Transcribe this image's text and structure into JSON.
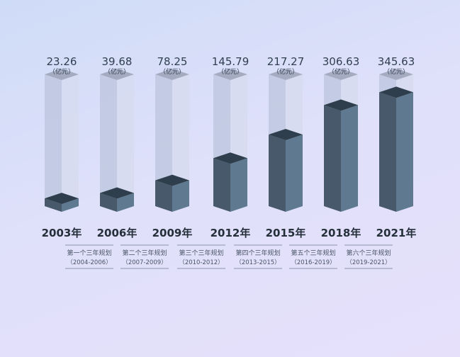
{
  "chart_data": {
    "type": "bar",
    "categories": [
      "2003年",
      "2006年",
      "2009年",
      "2012年",
      "2015年",
      "2018年",
      "2021年"
    ],
    "values": [
      23.26,
      39.68,
      78.25,
      145.79,
      217.27,
      306.63,
      345.63
    ],
    "value_labels": [
      "23.26",
      "39.68",
      "78.25",
      "145.79",
      "217.27",
      "306.63",
      "345.63"
    ],
    "unit_label": "（亿元）",
    "plans": [
      {
        "name": "第一个三年规划",
        "range": "（2004-2006）"
      },
      {
        "name": "第二个三年规划",
        "range": "（2007-2009）"
      },
      {
        "name": "第三个三年规划",
        "range": "（2010-2012）"
      },
      {
        "name": "第四个三年规划",
        "range": "（2013-2015）"
      },
      {
        "name": "第五个三年规划",
        "range": "（2016-2019）"
      },
      {
        "name": "第六个三年规划",
        "range": "（2019-2021）"
      }
    ],
    "ylim": [
      0,
      400
    ],
    "colors": {
      "fill_front": "#47596b",
      "fill_side": "#5f7a90",
      "fill_top": "#2f3e4c",
      "glass_front": "#c0c8e0",
      "glass_side": "#d6dbf0",
      "glass_top": "#9ea5b9"
    }
  }
}
